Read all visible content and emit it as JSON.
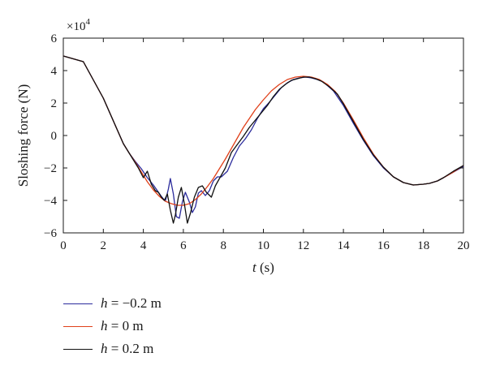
{
  "chart_data": {
    "type": "line",
    "xlabel_var": "t",
    "xlabel_unit": "(s)",
    "ylabel": "Sloshing force (N)",
    "y_multiplier": "×10",
    "y_multiplier_exp": "4",
    "xlim": [
      0,
      20
    ],
    "ylim": [
      -6,
      6
    ],
    "xticks": [
      0,
      2,
      4,
      6,
      8,
      10,
      12,
      14,
      16,
      18,
      20
    ],
    "yticks": [
      -6,
      -4,
      -2,
      0,
      2,
      4,
      6
    ],
    "grid": false,
    "legend_position": "below",
    "series": [
      {
        "name": "h = −0.2 m",
        "color": "#2b2b9c",
        "points": [
          [
            0,
            4.9
          ],
          [
            1,
            4.55
          ],
          [
            2,
            2.3
          ],
          [
            3,
            -0.5
          ],
          [
            3.3,
            -1.1
          ],
          [
            3.6,
            -1.6
          ],
          [
            3.9,
            -2.05
          ],
          [
            4.2,
            -2.6
          ],
          [
            4.5,
            -3.05
          ],
          [
            4.7,
            -3.4
          ],
          [
            4.9,
            -3.75
          ],
          [
            5.1,
            -4.05
          ],
          [
            5.25,
            -3.3
          ],
          [
            5.35,
            -2.65
          ],
          [
            5.5,
            -3.6
          ],
          [
            5.65,
            -5.0
          ],
          [
            5.8,
            -5.1
          ],
          [
            5.95,
            -4.1
          ],
          [
            6.1,
            -3.5
          ],
          [
            6.3,
            -4.1
          ],
          [
            6.45,
            -4.75
          ],
          [
            6.6,
            -4.4
          ],
          [
            6.75,
            -3.55
          ],
          [
            6.9,
            -3.4
          ],
          [
            7.1,
            -3.7
          ],
          [
            7.3,
            -3.4
          ],
          [
            7.5,
            -2.8
          ],
          [
            7.7,
            -2.55
          ],
          [
            7.9,
            -2.55
          ],
          [
            8.2,
            -2.2
          ],
          [
            8.5,
            -1.35
          ],
          [
            8.8,
            -0.65
          ],
          [
            9.1,
            -0.2
          ],
          [
            9.4,
            0.35
          ],
          [
            9.7,
            1.05
          ],
          [
            10.0,
            1.65
          ],
          [
            10.3,
            2.05
          ],
          [
            10.6,
            2.5
          ],
          [
            10.9,
            2.95
          ],
          [
            11.2,
            3.25
          ],
          [
            11.5,
            3.45
          ],
          [
            11.8,
            3.55
          ],
          [
            12.1,
            3.6
          ],
          [
            12.4,
            3.55
          ],
          [
            12.7,
            3.45
          ],
          [
            13,
            3.3
          ],
          [
            13.5,
            2.75
          ],
          [
            14,
            1.85
          ],
          [
            14.5,
            0.75
          ],
          [
            15,
            -0.3
          ],
          [
            15.5,
            -1.25
          ],
          [
            16,
            -2.0
          ],
          [
            16.5,
            -2.55
          ],
          [
            17,
            -2.9
          ],
          [
            17.5,
            -3.05
          ],
          [
            18,
            -3.0
          ],
          [
            18.3,
            -2.95
          ],
          [
            18.7,
            -2.8
          ],
          [
            19,
            -2.6
          ],
          [
            19.5,
            -2.25
          ],
          [
            20,
            -1.9
          ]
        ]
      },
      {
        "name": "h = 0 m",
        "color": "#e0401a",
        "points": [
          [
            0,
            4.9
          ],
          [
            1,
            4.55
          ],
          [
            2,
            2.3
          ],
          [
            3,
            -0.5
          ],
          [
            3.3,
            -1.1
          ],
          [
            3.6,
            -1.65
          ],
          [
            3.9,
            -2.25
          ],
          [
            4.2,
            -2.85
          ],
          [
            4.5,
            -3.35
          ],
          [
            4.8,
            -3.75
          ],
          [
            5.1,
            -4.05
          ],
          [
            5.4,
            -4.2
          ],
          [
            5.7,
            -4.3
          ],
          [
            6.0,
            -4.3
          ],
          [
            6.3,
            -4.2
          ],
          [
            6.6,
            -3.95
          ],
          [
            6.9,
            -3.6
          ],
          [
            7.2,
            -3.15
          ],
          [
            7.5,
            -2.65
          ],
          [
            7.8,
            -2.05
          ],
          [
            8.1,
            -1.45
          ],
          [
            8.4,
            -0.8
          ],
          [
            8.7,
            -0.15
          ],
          [
            9.0,
            0.5
          ],
          [
            9.3,
            1.05
          ],
          [
            9.6,
            1.6
          ],
          [
            10.0,
            2.2
          ],
          [
            10.4,
            2.75
          ],
          [
            10.8,
            3.15
          ],
          [
            11.2,
            3.45
          ],
          [
            11.6,
            3.6
          ],
          [
            12.0,
            3.65
          ],
          [
            12.4,
            3.6
          ],
          [
            12.8,
            3.45
          ],
          [
            13.2,
            3.15
          ],
          [
            13.6,
            2.7
          ],
          [
            14.0,
            2.0
          ],
          [
            14.5,
            0.95
          ],
          [
            15.0,
            -0.15
          ],
          [
            15.5,
            -1.15
          ],
          [
            16.0,
            -1.95
          ],
          [
            16.5,
            -2.55
          ],
          [
            17.0,
            -2.9
          ],
          [
            17.5,
            -3.05
          ],
          [
            18.0,
            -3.0
          ],
          [
            18.3,
            -2.95
          ],
          [
            18.7,
            -2.8
          ],
          [
            19.0,
            -2.6
          ],
          [
            19.5,
            -2.25
          ],
          [
            20.0,
            -1.85
          ]
        ]
      },
      {
        "name": "h = 0.2 m",
        "color": "#111111",
        "points": [
          [
            0,
            4.9
          ],
          [
            1,
            4.55
          ],
          [
            2,
            2.3
          ],
          [
            3,
            -0.5
          ],
          [
            3.25,
            -1.0
          ],
          [
            3.5,
            -1.5
          ],
          [
            3.75,
            -2.0
          ],
          [
            4.0,
            -2.6
          ],
          [
            4.2,
            -2.2
          ],
          [
            4.4,
            -3.0
          ],
          [
            4.6,
            -3.4
          ],
          [
            4.75,
            -3.5
          ],
          [
            4.9,
            -3.8
          ],
          [
            5.05,
            -4.0
          ],
          [
            5.2,
            -3.6
          ],
          [
            5.35,
            -4.6
          ],
          [
            5.5,
            -5.4
          ],
          [
            5.6,
            -4.9
          ],
          [
            5.75,
            -3.8
          ],
          [
            5.9,
            -3.2
          ],
          [
            6.05,
            -4.2
          ],
          [
            6.2,
            -5.4
          ],
          [
            6.35,
            -4.8
          ],
          [
            6.55,
            -3.8
          ],
          [
            6.75,
            -3.2
          ],
          [
            6.95,
            -3.1
          ],
          [
            7.15,
            -3.5
          ],
          [
            7.4,
            -3.8
          ],
          [
            7.6,
            -3.1
          ],
          [
            7.85,
            -2.55
          ],
          [
            8.1,
            -2.0
          ],
          [
            8.4,
            -1.05
          ],
          [
            8.7,
            -0.55
          ],
          [
            9.0,
            -0.05
          ],
          [
            9.3,
            0.5
          ],
          [
            9.6,
            0.95
          ],
          [
            9.9,
            1.4
          ],
          [
            10.2,
            1.85
          ],
          [
            10.5,
            2.4
          ],
          [
            10.8,
            2.85
          ],
          [
            11.1,
            3.15
          ],
          [
            11.4,
            3.4
          ],
          [
            11.7,
            3.5
          ],
          [
            12.0,
            3.6
          ],
          [
            12.3,
            3.6
          ],
          [
            12.6,
            3.5
          ],
          [
            12.9,
            3.35
          ],
          [
            13.3,
            3.0
          ],
          [
            13.7,
            2.55
          ],
          [
            14.0,
            1.95
          ],
          [
            14.5,
            0.85
          ],
          [
            15.0,
            -0.25
          ],
          [
            15.5,
            -1.2
          ],
          [
            16.0,
            -1.95
          ],
          [
            16.5,
            -2.55
          ],
          [
            17.0,
            -2.9
          ],
          [
            17.5,
            -3.05
          ],
          [
            18.0,
            -3.0
          ],
          [
            18.3,
            -2.95
          ],
          [
            18.7,
            -2.8
          ],
          [
            19.0,
            -2.6
          ],
          [
            19.5,
            -2.2
          ],
          [
            20.0,
            -1.85
          ]
        ]
      }
    ]
  },
  "legend": [
    {
      "var": "h",
      "rest": " = −0.2 m",
      "color": "#2b2b9c"
    },
    {
      "var": "h",
      "rest": " = 0 m",
      "color": "#e0401a"
    },
    {
      "var": "h",
      "rest": " = 0.2 m",
      "color": "#111111"
    }
  ]
}
